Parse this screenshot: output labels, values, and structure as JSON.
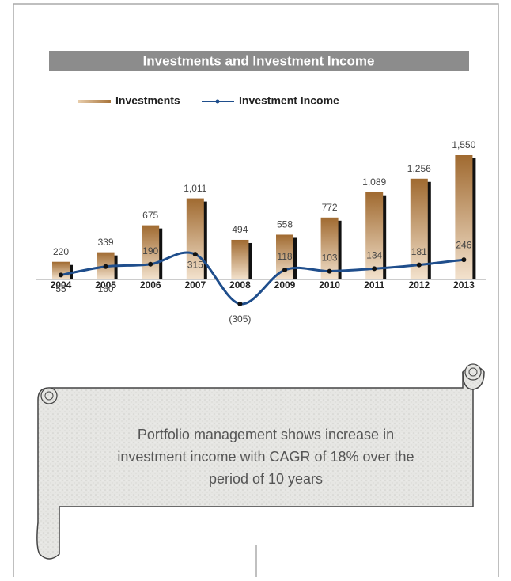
{
  "chart_data": {
    "type": "bar_line",
    "title": "Investments and Investment Income",
    "categories": [
      "2004",
      "2005",
      "2006",
      "2007",
      "2008",
      "2009",
      "2010",
      "2011",
      "2012",
      "2013"
    ],
    "series": [
      {
        "name": "Investments",
        "type": "bar",
        "color": "#b8844a",
        "values": [
          220,
          339,
          675,
          1011,
          494,
          558,
          772,
          1089,
          1256,
          1550
        ],
        "value_labels": [
          "220",
          "339",
          "675",
          "1,011",
          "494",
          "558",
          "772",
          "1,089",
          "1,256",
          "1,550"
        ]
      },
      {
        "name": "Investment Income",
        "type": "line",
        "color": "#1f4e8c",
        "values": [
          55,
          160,
          190,
          315,
          -305,
          118,
          103,
          134,
          181,
          246
        ],
        "value_labels": [
          "55",
          "160",
          "190",
          "315",
          "(305)",
          "118",
          "103",
          "134",
          "181",
          "246"
        ]
      }
    ],
    "note": [
      "Portfolio management shows increase in",
      "investment income with CAGR of 18% over the",
      "period of 10 years"
    ]
  }
}
